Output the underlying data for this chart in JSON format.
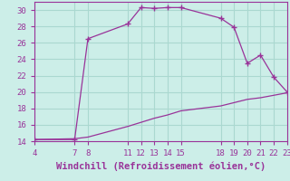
{
  "xlabel": "Windchill (Refroidissement éolien,°C)",
  "background_color": "#cceee8",
  "line_color": "#993399",
  "marker": "+",
  "xlim": [
    4,
    23
  ],
  "ylim": [
    14,
    31
  ],
  "xticks": [
    4,
    7,
    8,
    11,
    12,
    13,
    14,
    15,
    18,
    19,
    20,
    21,
    22,
    23
  ],
  "yticks": [
    14,
    16,
    18,
    20,
    22,
    24,
    26,
    28,
    30
  ],
  "grid_color": "#aad8d0",
  "curve1_x": [
    4,
    7,
    8,
    11,
    12,
    13,
    14,
    15,
    18,
    19,
    20,
    21,
    22,
    23
  ],
  "curve1_y": [
    14.2,
    14.2,
    26.5,
    28.3,
    30.3,
    30.2,
    30.3,
    30.3,
    29.0,
    27.9,
    23.5,
    24.5,
    21.8,
    20.0
  ],
  "curve2_x": [
    4,
    7,
    8,
    11,
    12,
    13,
    14,
    15,
    18,
    19,
    20,
    21,
    22,
    23
  ],
  "curve2_y": [
    14.2,
    14.3,
    14.5,
    15.8,
    16.3,
    16.8,
    17.2,
    17.7,
    18.3,
    18.7,
    19.1,
    19.3,
    19.6,
    19.9
  ],
  "tick_fontsize": 6.5,
  "label_fontsize": 7.5
}
